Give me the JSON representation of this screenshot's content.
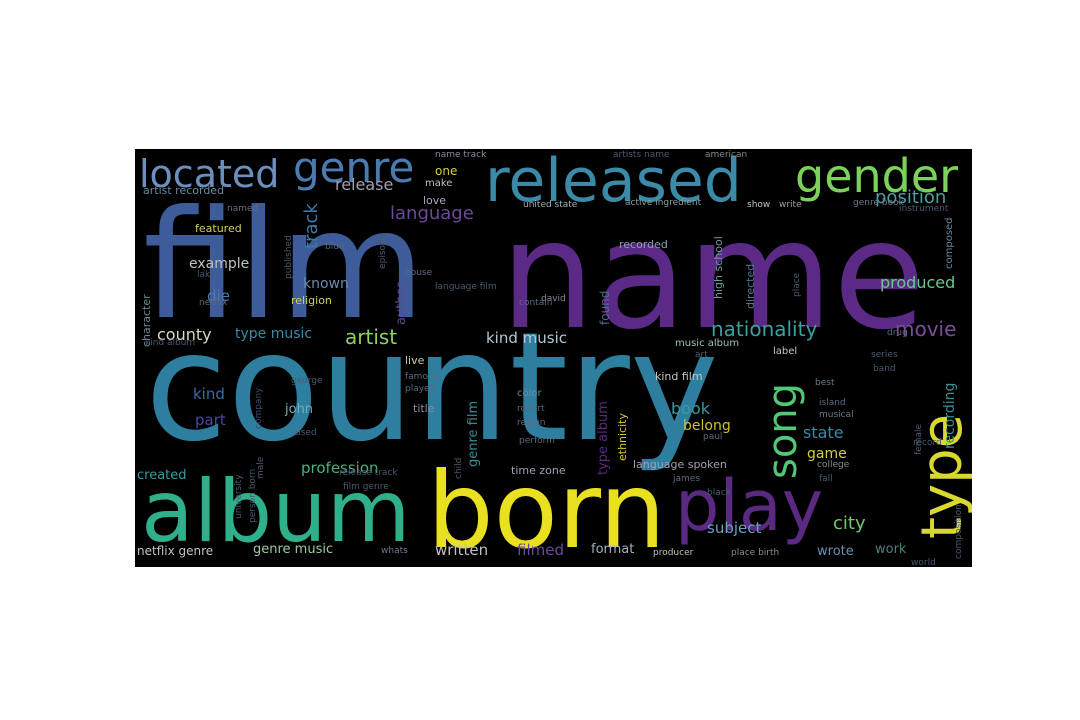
{
  "wordcloud": {
    "background": "#000000",
    "colormap": [
      "#440154",
      "#3b528b",
      "#21918c",
      "#5ec962",
      "#fde725"
    ],
    "words": [
      {
        "text": "name",
        "color": "#5b2a86"
      },
      {
        "text": "film",
        "color": "#3e5c9a"
      },
      {
        "text": "country",
        "color": "#2e7ea0"
      },
      {
        "text": "born",
        "color": "#e8e021"
      },
      {
        "text": "album",
        "color": "#2fb08a"
      },
      {
        "text": "released",
        "color": "#3a8aa8"
      },
      {
        "text": "gender",
        "color": "#7cd15a"
      },
      {
        "text": "play",
        "color": "#5a2a82"
      },
      {
        "text": "type",
        "color": "#d8d830"
      },
      {
        "text": "genre",
        "color": "#4a7cb0"
      },
      {
        "text": "located",
        "color": "#6d8fc0"
      },
      {
        "text": "song",
        "color": "#50c878"
      },
      {
        "text": "artist",
        "color": "#8ed068"
      },
      {
        "text": "nationality",
        "color": "#3aa0a0"
      },
      {
        "text": "movie",
        "color": "#7a4d9c"
      },
      {
        "text": "language",
        "color": "#6a4a9a"
      },
      {
        "text": "position",
        "color": "#4aa0a0"
      },
      {
        "text": "release",
        "color": "#a0a0b0"
      },
      {
        "text": "track",
        "color": "#3a7aa8"
      },
      {
        "text": "produced",
        "color": "#6ac88c"
      },
      {
        "text": "book",
        "color": "#3a9aa0"
      },
      {
        "text": "kind music",
        "color": "#b0c8d8"
      },
      {
        "text": "county",
        "color": "#d8d8c0"
      },
      {
        "text": "type music",
        "color": "#3a8aa8"
      },
      {
        "text": "profession",
        "color": "#4ab080"
      },
      {
        "text": "city",
        "color": "#70c870"
      },
      {
        "text": "state",
        "color": "#3a8aa0"
      },
      {
        "text": "game",
        "color": "#d0d040"
      },
      {
        "text": "recording",
        "color": "#3a9090"
      },
      {
        "text": "subject",
        "color": "#6aa0c0"
      },
      {
        "text": "written",
        "color": "#c0c0c8"
      },
      {
        "text": "filmed",
        "color": "#6a4a9a"
      },
      {
        "text": "format",
        "color": "#a0b0c0"
      },
      {
        "text": "wrote",
        "color": "#6a90b0"
      },
      {
        "text": "work",
        "color": "#4a8080"
      },
      {
        "text": "genre music",
        "color": "#a0c8a0"
      },
      {
        "text": "netflix genre",
        "color": "#c0c0c8"
      },
      {
        "text": "created",
        "color": "#3a9aa0"
      },
      {
        "text": "die",
        "color": "#4a7cb0"
      },
      {
        "text": "kind",
        "color": "#3a6aa8"
      },
      {
        "text": "part",
        "color": "#4a4a9a"
      },
      {
        "text": "example",
        "color": "#c0c0c0"
      },
      {
        "text": "known",
        "color": "#6a8ab0"
      },
      {
        "text": "religion",
        "color": "#d0d050"
      },
      {
        "text": "author",
        "color": "#5a4a90"
      },
      {
        "text": "john",
        "color": "#70b0b0"
      },
      {
        "text": "found",
        "color": "#4a7090"
      },
      {
        "text": "belong",
        "color": "#d0c030"
      },
      {
        "text": "genre film",
        "color": "#3a8a90"
      },
      {
        "text": "type album",
        "color": "#5a2a80"
      },
      {
        "text": "ethnicity",
        "color": "#d8c830"
      },
      {
        "text": "time zone",
        "color": "#a0a0b0"
      },
      {
        "text": "language spoken",
        "color": "#a0a0b0"
      },
      {
        "text": "one",
        "color": "#d0d040"
      },
      {
        "text": "make",
        "color": "#c0c0c0"
      },
      {
        "text": "love",
        "color": "#b0a0c0"
      },
      {
        "text": "featured",
        "color": "#d0d060"
      },
      {
        "text": "character",
        "color": "#6a8a90"
      },
      {
        "text": "artist recorded",
        "color": "#6a8aa0"
      },
      {
        "text": "live",
        "color": "#c8c8b0"
      },
      {
        "text": "title",
        "color": "#8a8aa0"
      },
      {
        "text": "color",
        "color": "#6a8aa0"
      },
      {
        "text": "directed",
        "color": "#4a7a90"
      },
      {
        "text": "high school",
        "color": "#6a9aa0"
      },
      {
        "text": "music album",
        "color": "#a0c0c0"
      },
      {
        "text": "kind film",
        "color": "#c0c8c0"
      },
      {
        "text": "label",
        "color": "#c0c8c8"
      },
      {
        "text": "composed",
        "color": "#6a8aa0"
      },
      {
        "text": "recorded",
        "color": "#8aa0b0"
      },
      {
        "text": "united state",
        "color": "#a0b0b0"
      },
      {
        "text": "active ingredient",
        "color": "#8aa0a0"
      },
      {
        "text": "name track",
        "color": "#8a8aa0"
      },
      {
        "text": "american",
        "color": "#8a8a90"
      },
      {
        "text": "genre book",
        "color": "#6a7a90"
      },
      {
        "text": "david",
        "color": "#8a8a90"
      },
      {
        "text": "place birth",
        "color": "#8a8a90"
      },
      {
        "text": "producer",
        "color": "#c0c0b0"
      },
      {
        "text": "whats",
        "color": "#6a7a90"
      },
      {
        "text": "place",
        "color": "#4a5a70"
      },
      {
        "text": "series",
        "color": "#4a5a70"
      },
      {
        "text": "best",
        "color": "#6a7a80"
      },
      {
        "text": "island",
        "color": "#5a6a80"
      },
      {
        "text": "musical",
        "color": "#6a7a80"
      },
      {
        "text": "college",
        "color": "#8a8a90"
      },
      {
        "text": "region",
        "color": "#6a6a80"
      },
      {
        "text": "perform",
        "color": "#5a6a80"
      },
      {
        "text": "robert",
        "color": "#5a6a80"
      },
      {
        "text": "contain",
        "color": "#5a6a80"
      },
      {
        "text": "played",
        "color": "#5a6a80"
      },
      {
        "text": "famous",
        "color": "#5a6a80"
      },
      {
        "text": "house",
        "color": "#5a6a80"
      },
      {
        "text": "episode",
        "color": "#4a5a70"
      },
      {
        "text": "blue",
        "color": "#5a6a80"
      },
      {
        "text": "published",
        "color": "#4a5a70"
      },
      {
        "text": "named",
        "color": "#6a6a80"
      },
      {
        "text": "show",
        "color": "#c0c0c0"
      },
      {
        "text": "write",
        "color": "#a0a0a0"
      },
      {
        "text": "paul",
        "color": "#5a6a80"
      },
      {
        "text": "james",
        "color": "#5a6a80"
      },
      {
        "text": "black",
        "color": "#4a5a70"
      },
      {
        "text": "world",
        "color": "#4a5a70"
      },
      {
        "text": "composition",
        "color": "#4a5a70"
      },
      {
        "text": "university",
        "color": "#4a5a70"
      },
      {
        "text": "person born",
        "color": "#4a5a70"
      },
      {
        "text": "release track",
        "color": "#4a5a70"
      },
      {
        "text": "female",
        "color": "#4a5a70"
      },
      {
        "text": "male",
        "color": "#4a5a70"
      },
      {
        "text": "netflix",
        "color": "#5a6a80"
      },
      {
        "text": "band",
        "color": "#4a5a70"
      },
      {
        "text": "drug",
        "color": "#5a6a80"
      },
      {
        "text": "used",
        "color": "#4a5a70"
      },
      {
        "text": "george",
        "color": "#4a5a70"
      },
      {
        "text": "art",
        "color": "#4a5a70"
      },
      {
        "text": "kind album",
        "color": "#4a5a70"
      },
      {
        "text": "artists name",
        "color": "#4a5a70"
      },
      {
        "text": "child",
        "color": "#4a5a70"
      },
      {
        "text": "record",
        "color": "#4a5a70"
      },
      {
        "text": "film genre",
        "color": "#4a5a70"
      },
      {
        "text": "language film",
        "color": "#4a5a70"
      },
      {
        "text": "instrument",
        "color": "#4a5a70"
      },
      {
        "text": "lake",
        "color": "#4a5a70"
      },
      {
        "text": "fall",
        "color": "#4a5a70"
      },
      {
        "text": "company",
        "color": "#3a4a70"
      }
    ]
  }
}
